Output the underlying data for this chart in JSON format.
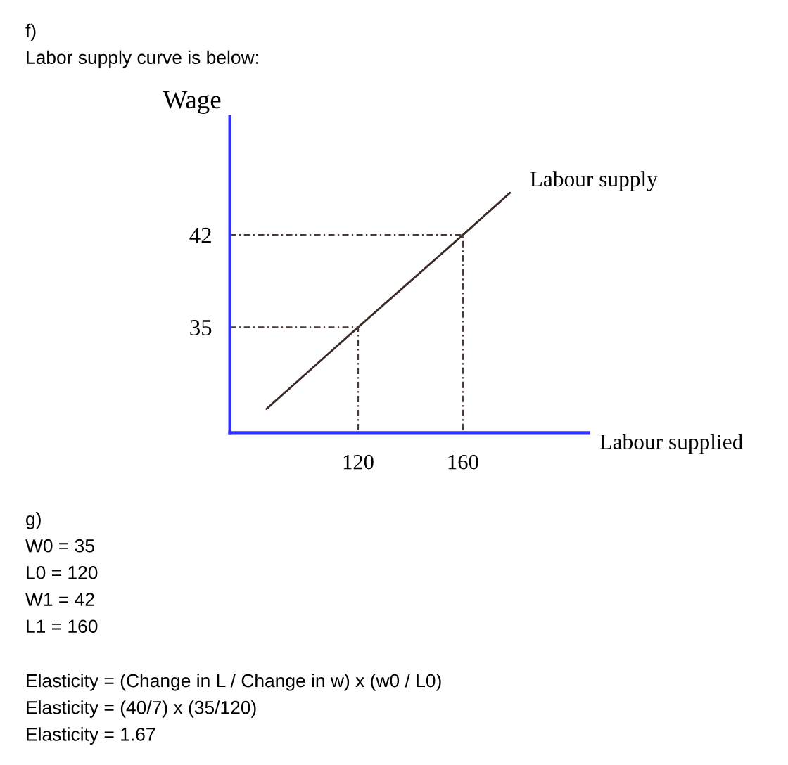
{
  "chart_data": {
    "type": "line",
    "title": "f)",
    "subtitle": "Labor supply curve is below:",
    "xlabel": "Labour supplied",
    "ylabel": "Wage",
    "series": [
      {
        "name": "Labour supply",
        "color": "#3b2b27",
        "x": [
          85,
          120,
          160,
          178
        ],
        "values": [
          28.8,
          35,
          42,
          45.2
        ],
        "line_style": "solid"
      },
      {
        "color": "#4a3a35",
        "x": [
          71,
          120,
          120
        ],
        "values": [
          35,
          35,
          27
        ],
        "line_style": "dashed"
      },
      {
        "color": "#4a3a35",
        "x": [
          71,
          160,
          160
        ],
        "values": [
          42,
          42,
          27
        ],
        "line_style": "dashed"
      }
    ],
    "xlim": [
      71,
      208
    ],
    "ylim": [
      27,
      51
    ],
    "xticks": [
      120,
      160
    ],
    "yticks": [
      35,
      42
    ],
    "annotations": [
      "g)\nW0 = 35\nL0 = 120\nW1 = 42\nL1 = 160",
      "Elasticity = (Change in L / Change in w) x (w0 / L0)\nElasticity = (40/7) x (35/120)\nElasticity = 1.67"
    ]
  }
}
